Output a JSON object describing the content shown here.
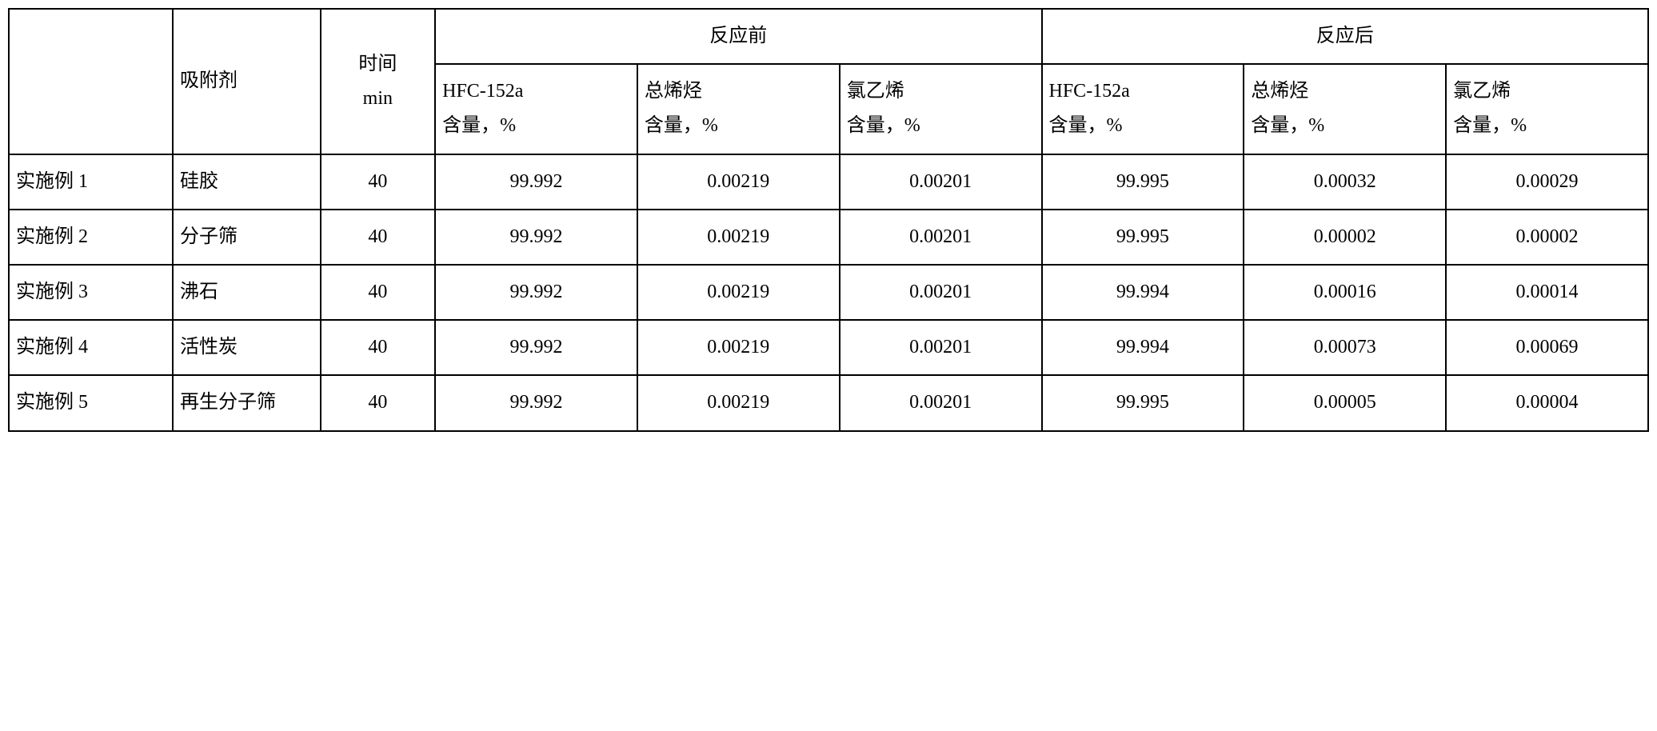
{
  "headers": {
    "adsorbent": "吸附剂",
    "time": "时间\nmin",
    "before_reaction": "反应前",
    "after_reaction": "反应后",
    "hfc_content": "HFC-152a\n含量，%",
    "total_olefin": "总烯烃\n含量，%",
    "vinyl_chloride": "氯乙烯\n含量，%"
  },
  "rows": [
    {
      "example": "实施例 1",
      "adsorbent": "硅胶",
      "time": "40",
      "before_hfc": "99.992",
      "before_olefin": "0.00219",
      "before_vinyl": "0.00201",
      "after_hfc": "99.995",
      "after_olefin": "0.00032",
      "after_vinyl": "0.00029"
    },
    {
      "example": "实施例 2",
      "adsorbent": "分子筛",
      "time": "40",
      "before_hfc": "99.992",
      "before_olefin": "0.00219",
      "before_vinyl": "0.00201",
      "after_hfc": "99.995",
      "after_olefin": "0.00002",
      "after_vinyl": "0.00002"
    },
    {
      "example": "实施例 3",
      "adsorbent": "沸石",
      "time": "40",
      "before_hfc": "99.992",
      "before_olefin": "0.00219",
      "before_vinyl": "0.00201",
      "after_hfc": "99.994",
      "after_olefin": "0.00016",
      "after_vinyl": "0.00014"
    },
    {
      "example": "实施例 4",
      "adsorbent": "活性炭",
      "time": "40",
      "before_hfc": "99.992",
      "before_olefin": "0.00219",
      "before_vinyl": "0.00201",
      "after_hfc": "99.994",
      "after_olefin": "0.00073",
      "after_vinyl": "0.00069"
    },
    {
      "example": "实施例 5",
      "adsorbent": "再生分子筛",
      "time": "40",
      "before_hfc": "99.992",
      "before_olefin": "0.00219",
      "before_vinyl": "0.00201",
      "after_hfc": "99.995",
      "after_olefin": "0.00005",
      "after_vinyl": "0.00004"
    }
  ],
  "styling": {
    "border_color": "#000000",
    "border_width": 2,
    "background_color": "#ffffff",
    "text_color": "#000000",
    "font_family": "SimSun",
    "cell_font_size": 24,
    "line_height": 1.8
  }
}
